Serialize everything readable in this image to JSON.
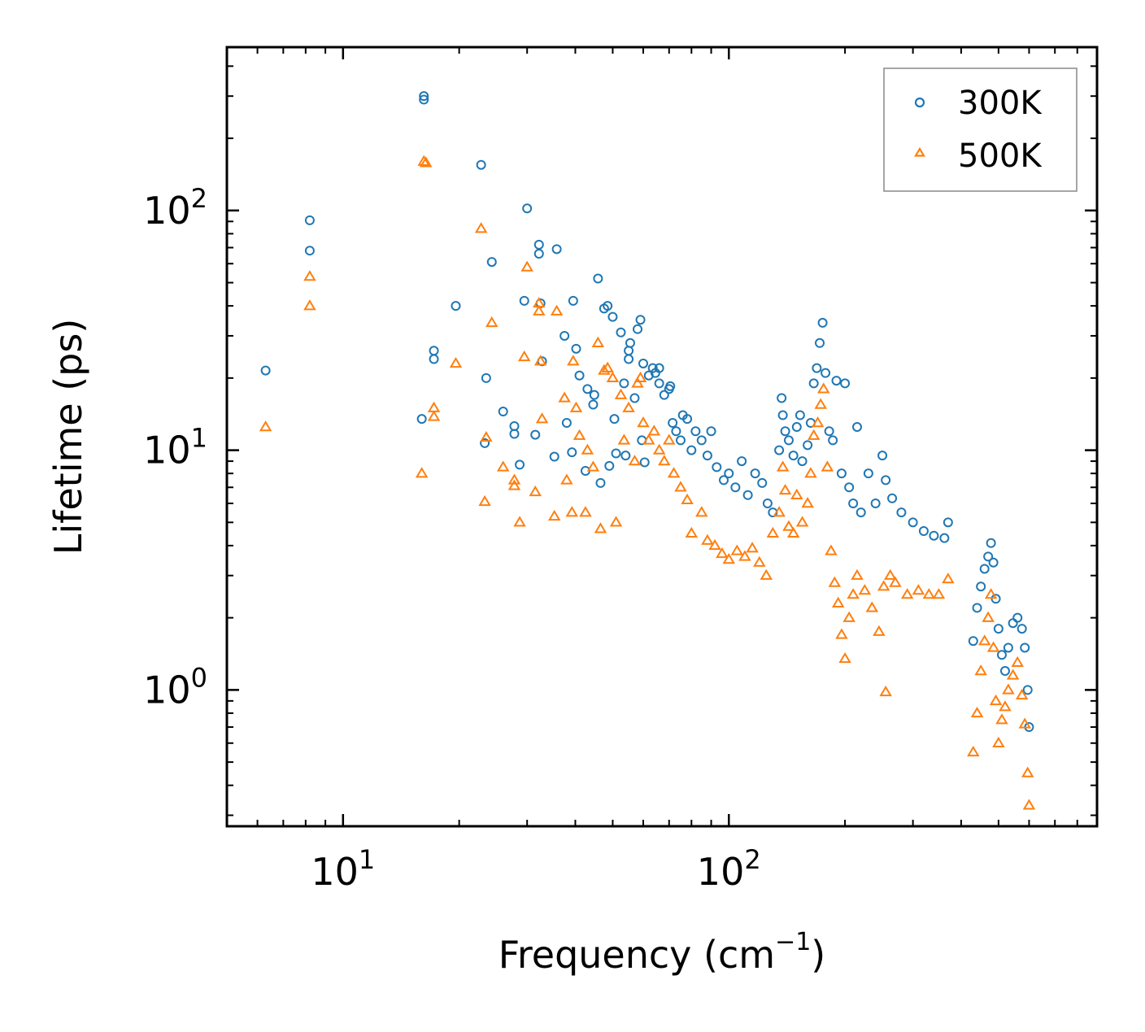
{
  "chart_data": {
    "type": "scatter",
    "xscale": "log",
    "yscale": "log",
    "xlim": [
      5,
      900
    ],
    "ylim": [
      0.27,
      480
    ],
    "xlabel": "Frequency (cm",
    "xlabel_sup": "−1",
    "xlabel_end": ")",
    "ylabel": "Lifetime (ps)",
    "x_major_ticks": [
      {
        "value": 10,
        "base": "10",
        "exp": "1"
      },
      {
        "value": 100,
        "base": "10",
        "exp": "2"
      }
    ],
    "y_major_ticks": [
      {
        "value": 1,
        "base": "10",
        "exp": "0"
      },
      {
        "value": 10,
        "base": "10",
        "exp": "1"
      },
      {
        "value": 100,
        "base": "10",
        "exp": "2"
      }
    ],
    "legend_position": "top-right",
    "series": [
      {
        "name": "300K",
        "marker": "circle",
        "color": "#1f77b4",
        "points": [
          [
            6.3,
            21.5
          ],
          [
            8.2,
            91
          ],
          [
            8.2,
            68
          ],
          [
            16.0,
            13.5
          ],
          [
            16.2,
            300
          ],
          [
            16.2,
            290
          ],
          [
            17.2,
            26
          ],
          [
            17.2,
            24
          ],
          [
            19.6,
            40
          ],
          [
            22.8,
            155
          ],
          [
            23.3,
            10.7
          ],
          [
            23.5,
            20
          ],
          [
            24.3,
            61
          ],
          [
            26.0,
            14.5
          ],
          [
            27.8,
            12.6
          ],
          [
            27.8,
            11.7
          ],
          [
            28.7,
            8.7
          ],
          [
            29.5,
            42
          ],
          [
            30.0,
            102
          ],
          [
            31.5,
            11.6
          ],
          [
            32.2,
            72
          ],
          [
            32.2,
            66
          ],
          [
            32.5,
            41
          ],
          [
            32.8,
            23.5
          ],
          [
            35.3,
            9.4
          ],
          [
            35.8,
            69
          ],
          [
            37.5,
            30
          ],
          [
            38.0,
            13
          ],
          [
            39.2,
            9.8
          ],
          [
            39.5,
            42
          ],
          [
            40.2,
            26.5
          ],
          [
            41.0,
            20.5
          ],
          [
            42.5,
            8.2
          ],
          [
            43.0,
            18
          ],
          [
            44.5,
            15.5
          ],
          [
            44.8,
            17
          ],
          [
            45.8,
            52
          ],
          [
            46.5,
            7.3
          ],
          [
            47.5,
            39
          ],
          [
            48.5,
            40
          ],
          [
            49.0,
            8.6
          ],
          [
            50.0,
            36
          ],
          [
            50.5,
            13.5
          ],
          [
            51.0,
            9.7
          ],
          [
            52.5,
            31
          ],
          [
            53.5,
            19
          ],
          [
            54.0,
            9.5
          ],
          [
            55.0,
            24
          ],
          [
            55.0,
            26
          ],
          [
            55.5,
            28
          ],
          [
            57.0,
            16.5
          ],
          [
            58.0,
            32
          ],
          [
            59.0,
            35
          ],
          [
            59.5,
            11
          ],
          [
            60.0,
            23
          ],
          [
            60.5,
            8.9
          ],
          [
            62.0,
            20.5
          ],
          [
            63.5,
            22
          ],
          [
            64.5,
            21
          ],
          [
            66.0,
            19
          ],
          [
            66.0,
            22
          ],
          [
            68.0,
            17
          ],
          [
            70.0,
            18
          ],
          [
            70.5,
            18.5
          ],
          [
            71.5,
            13
          ],
          [
            73.0,
            12
          ],
          [
            75.0,
            11
          ],
          [
            76.0,
            14
          ],
          [
            78.0,
            13.5
          ],
          [
            80.0,
            10
          ],
          [
            82.0,
            12
          ],
          [
            85.0,
            11
          ],
          [
            88.0,
            9.5
          ],
          [
            90.0,
            12
          ],
          [
            93.0,
            8.5
          ],
          [
            97.0,
            7.5
          ],
          [
            100.0,
            8
          ],
          [
            104.0,
            7
          ],
          [
            108.0,
            9
          ],
          [
            112.0,
            6.5
          ],
          [
            117.0,
            8
          ],
          [
            122.0,
            7.3
          ],
          [
            126.0,
            6.0
          ],
          [
            130.0,
            5.5
          ],
          [
            135.0,
            10
          ],
          [
            137.0,
            16.5
          ],
          [
            138.0,
            14.0
          ],
          [
            140.0,
            12.0
          ],
          [
            143.0,
            11.0
          ],
          [
            147.0,
            9.5
          ],
          [
            150.0,
            12.5
          ],
          [
            153.0,
            14.0
          ],
          [
            155.0,
            9.0
          ],
          [
            160.0,
            10.5
          ],
          [
            163.0,
            13.0
          ],
          [
            166.0,
            19.0
          ],
          [
            169.0,
            22.0
          ],
          [
            172.0,
            28.0
          ],
          [
            175.0,
            34.0
          ],
          [
            178.0,
            21.0
          ],
          [
            182.0,
            12.0
          ],
          [
            186.0,
            11.0
          ],
          [
            190.0,
            19.5
          ],
          [
            196.0,
            8.0
          ],
          [
            200.0,
            19.0
          ],
          [
            205.0,
            7.0
          ],
          [
            210.0,
            6.0
          ],
          [
            215.0,
            12.5
          ],
          [
            220.0,
            5.5
          ],
          [
            230.0,
            8.0
          ],
          [
            240.0,
            6.0
          ],
          [
            250.0,
            9.5
          ],
          [
            255.0,
            7.5
          ],
          [
            265.0,
            6.3
          ],
          [
            280.0,
            5.5
          ],
          [
            300.0,
            5.0
          ],
          [
            320.0,
            4.6
          ],
          [
            340.0,
            4.4
          ],
          [
            362.0,
            4.3
          ],
          [
            370.0,
            5.0
          ],
          [
            430.0,
            1.6
          ],
          [
            440.0,
            2.2
          ],
          [
            450.0,
            2.7
          ],
          [
            460.0,
            3.2
          ],
          [
            470.0,
            3.6
          ],
          [
            478.0,
            4.1
          ],
          [
            485.0,
            3.4
          ],
          [
            492.0,
            2.4
          ],
          [
            500.0,
            1.8
          ],
          [
            510.0,
            1.4
          ],
          [
            520.0,
            1.2
          ],
          [
            530.0,
            1.5
          ],
          [
            545.0,
            1.9
          ],
          [
            560.0,
            2.0
          ],
          [
            575.0,
            1.8
          ],
          [
            585.0,
            1.5
          ],
          [
            595.0,
            1.0
          ],
          [
            600.0,
            0.7
          ]
        ]
      },
      {
        "name": "500K",
        "marker": "triangle",
        "color": "#ff7f0e",
        "points": [
          [
            6.3,
            12.5
          ],
          [
            8.2,
            53
          ],
          [
            8.2,
            40
          ],
          [
            16.0,
            8.0
          ],
          [
            16.2,
            160
          ],
          [
            16.4,
            158
          ],
          [
            17.2,
            15
          ],
          [
            17.2,
            13.8
          ],
          [
            19.6,
            23
          ],
          [
            22.8,
            84
          ],
          [
            23.3,
            6.1
          ],
          [
            23.5,
            11.3
          ],
          [
            24.3,
            34
          ],
          [
            26.0,
            8.5
          ],
          [
            27.8,
            7.5
          ],
          [
            27.8,
            7.1
          ],
          [
            28.7,
            5.0
          ],
          [
            29.5,
            24.5
          ],
          [
            30.0,
            58
          ],
          [
            31.5,
            6.7
          ],
          [
            32.2,
            41
          ],
          [
            32.2,
            38
          ],
          [
            32.5,
            23.5
          ],
          [
            32.8,
            13.5
          ],
          [
            35.3,
            5.3
          ],
          [
            35.8,
            38
          ],
          [
            37.5,
            16.5
          ],
          [
            38.0,
            7.5
          ],
          [
            39.2,
            5.5
          ],
          [
            39.5,
            23.5
          ],
          [
            40.2,
            15
          ],
          [
            41.0,
            11.5
          ],
          [
            42.5,
            5.5
          ],
          [
            43.0,
            10
          ],
          [
            44.5,
            8.5
          ],
          [
            45.8,
            28
          ],
          [
            46.5,
            4.7
          ],
          [
            47.5,
            21.5
          ],
          [
            48.5,
            22
          ],
          [
            50.0,
            20
          ],
          [
            51.0,
            5.0
          ],
          [
            52.5,
            17
          ],
          [
            53.5,
            11
          ],
          [
            55.0,
            15
          ],
          [
            57.0,
            9
          ],
          [
            58.0,
            19
          ],
          [
            59.0,
            20
          ],
          [
            60.0,
            13
          ],
          [
            62.0,
            11
          ],
          [
            64.0,
            12
          ],
          [
            66.0,
            10
          ],
          [
            68.0,
            9
          ],
          [
            70.0,
            11
          ],
          [
            72.0,
            8
          ],
          [
            75.0,
            7
          ],
          [
            78.0,
            6.2
          ],
          [
            80.0,
            4.5
          ],
          [
            85.0,
            5.5
          ],
          [
            88.0,
            4.2
          ],
          [
            92.0,
            4.0
          ],
          [
            96.0,
            3.7
          ],
          [
            100.0,
            3.5
          ],
          [
            105.0,
            3.8
          ],
          [
            110.0,
            3.6
          ],
          [
            115.0,
            3.9
          ],
          [
            120.0,
            3.4
          ],
          [
            125.0,
            3.0
          ],
          [
            130.0,
            4.5
          ],
          [
            135.0,
            5.5
          ],
          [
            138.0,
            8.5
          ],
          [
            140.0,
            6.8
          ],
          [
            143.0,
            4.8
          ],
          [
            147.0,
            4.5
          ],
          [
            150.0,
            6.5
          ],
          [
            155.0,
            5.0
          ],
          [
            160.0,
            6.0
          ],
          [
            163.0,
            8.0
          ],
          [
            166.0,
            11.5
          ],
          [
            170.0,
            13.0
          ],
          [
            173.0,
            15.5
          ],
          [
            176.0,
            18.0
          ],
          [
            180.0,
            8.5
          ],
          [
            184.0,
            3.8
          ],
          [
            188.0,
            2.8
          ],
          [
            192.0,
            2.3
          ],
          [
            196.0,
            1.7
          ],
          [
            200.0,
            1.35
          ],
          [
            205.0,
            2.0
          ],
          [
            210.0,
            2.5
          ],
          [
            215.0,
            3.0
          ],
          [
            225.0,
            2.6
          ],
          [
            235.0,
            2.2
          ],
          [
            245.0,
            1.75
          ],
          [
            252.0,
            2.7
          ],
          [
            255.0,
            0.98
          ],
          [
            262.0,
            3.0
          ],
          [
            270.0,
            2.8
          ],
          [
            290.0,
            2.5
          ],
          [
            310.0,
            2.6
          ],
          [
            330.0,
            2.5
          ],
          [
            350.0,
            2.5
          ],
          [
            370.0,
            2.9
          ],
          [
            430.0,
            0.55
          ],
          [
            440.0,
            0.8
          ],
          [
            450.0,
            1.2
          ],
          [
            460.0,
            1.6
          ],
          [
            470.0,
            2.0
          ],
          [
            478.0,
            2.5
          ],
          [
            485.0,
            1.5
          ],
          [
            492.0,
            0.9
          ],
          [
            500.0,
            0.6
          ],
          [
            510.0,
            0.75
          ],
          [
            520.0,
            0.85
          ],
          [
            530.0,
            1.0
          ],
          [
            545.0,
            1.15
          ],
          [
            560.0,
            1.3
          ],
          [
            575.0,
            0.95
          ],
          [
            585.0,
            0.72
          ],
          [
            595.0,
            0.45
          ],
          [
            600.0,
            0.33
          ]
        ]
      }
    ]
  }
}
